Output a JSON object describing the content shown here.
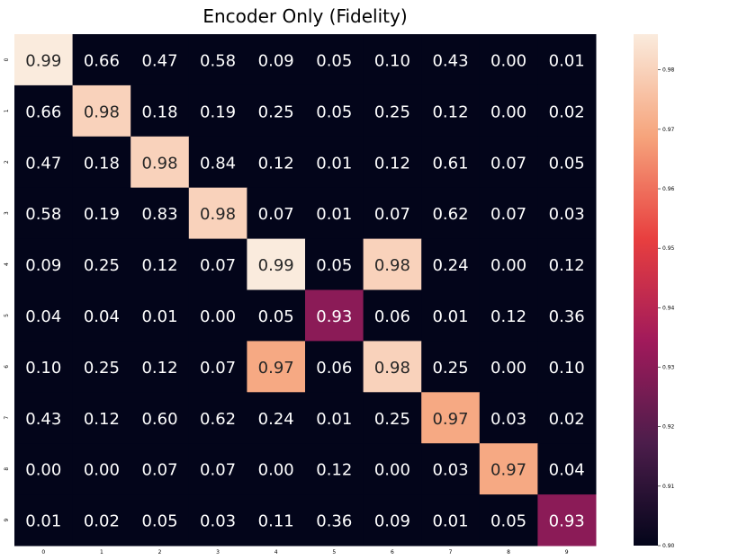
{
  "chart_data": {
    "type": "heatmap",
    "title": "Encoder Only (Fidelity)",
    "x_tick_labels": [
      "0",
      "1",
      "2",
      "3",
      "4",
      "5",
      "6",
      "7",
      "8",
      "9"
    ],
    "y_tick_labels": [
      "0",
      "1",
      "2",
      "3",
      "4",
      "5",
      "6",
      "7",
      "8",
      "9"
    ],
    "values": [
      [
        0.99,
        0.66,
        0.47,
        0.58,
        0.09,
        0.05,
        0.1,
        0.43,
        0.0,
        0.01
      ],
      [
        0.66,
        0.98,
        0.18,
        0.19,
        0.25,
        0.05,
        0.25,
        0.12,
        0.0,
        0.02
      ],
      [
        0.47,
        0.18,
        0.98,
        0.84,
        0.12,
        0.01,
        0.12,
        0.61,
        0.07,
        0.05
      ],
      [
        0.58,
        0.19,
        0.83,
        0.98,
        0.07,
        0.01,
        0.07,
        0.62,
        0.07,
        0.03
      ],
      [
        0.09,
        0.25,
        0.12,
        0.07,
        0.99,
        0.05,
        0.98,
        0.24,
        0.0,
        0.12
      ],
      [
        0.04,
        0.04,
        0.01,
        0.0,
        0.05,
        0.93,
        0.06,
        0.01,
        0.12,
        0.36
      ],
      [
        0.1,
        0.25,
        0.12,
        0.07,
        0.97,
        0.06,
        0.98,
        0.25,
        0.0,
        0.1
      ],
      [
        0.43,
        0.12,
        0.6,
        0.62,
        0.24,
        0.01,
        0.25,
        0.97,
        0.03,
        0.02
      ],
      [
        0.0,
        0.0,
        0.07,
        0.07,
        0.0,
        0.12,
        0.0,
        0.03,
        0.97,
        0.04
      ],
      [
        0.01,
        0.02,
        0.05,
        0.03,
        0.11,
        0.36,
        0.09,
        0.01,
        0.05,
        0.93
      ]
    ],
    "display_values": [
      [
        "0.99",
        "0.66",
        "0.47",
        "0.58",
        "0.09",
        "0.05",
        "0.10",
        "0.43",
        "0.00",
        "0.01"
      ],
      [
        "0.66",
        "0.98",
        "0.18",
        "0.19",
        "0.25",
        "0.05",
        "0.25",
        "0.12",
        "0.00",
        "0.02"
      ],
      [
        "0.47",
        "0.18",
        "0.98",
        "0.84",
        "0.12",
        "0.01",
        "0.12",
        "0.61",
        "0.07",
        "0.05"
      ],
      [
        "0.58",
        "0.19",
        "0.83",
        "0.98",
        "0.07",
        "0.01",
        "0.07",
        "0.62",
        "0.07",
        "0.03"
      ],
      [
        "0.09",
        "0.25",
        "0.12",
        "0.07",
        "0.99",
        "0.05",
        "0.98",
        "0.24",
        "0.00",
        "0.12"
      ],
      [
        "0.04",
        "0.04",
        "0.01",
        "0.00",
        "0.05",
        "0.93",
        "0.06",
        "0.01",
        "0.12",
        "0.36"
      ],
      [
        "0.10",
        "0.25",
        "0.12",
        "0.07",
        "0.97",
        "0.06",
        "0.98",
        "0.25",
        "0.00",
        "0.10"
      ],
      [
        "0.43",
        "0.12",
        "0.60",
        "0.62",
        "0.24",
        "0.01",
        "0.25",
        "0.97",
        "0.03",
        "0.02"
      ],
      [
        "0.00",
        "0.00",
        "0.07",
        "0.07",
        "0.00",
        "0.12",
        "0.00",
        "0.03",
        "0.97",
        "0.04"
      ],
      [
        "0.01",
        "0.02",
        "0.05",
        "0.03",
        "0.11",
        "0.36",
        "0.09",
        "0.01",
        "0.05",
        "0.93"
      ]
    ],
    "color_scale": {
      "vmin": 0.9,
      "vmax": 0.986,
      "colormap": "rocket",
      "stops": [
        "#03051a",
        "#4c1d4b",
        "#a11a5b",
        "#e83f3f",
        "#f6a47c",
        "#faebdd"
      ],
      "ticks": [
        0.9,
        0.91,
        0.92,
        0.93,
        0.94,
        0.95,
        0.96,
        0.97,
        0.98
      ],
      "tick_labels": [
        "0.90",
        "0.91",
        "0.92",
        "0.93",
        "0.94",
        "0.95",
        "0.96",
        "0.97",
        "0.98"
      ]
    },
    "grid": false,
    "legend": "colorbar-right"
  }
}
